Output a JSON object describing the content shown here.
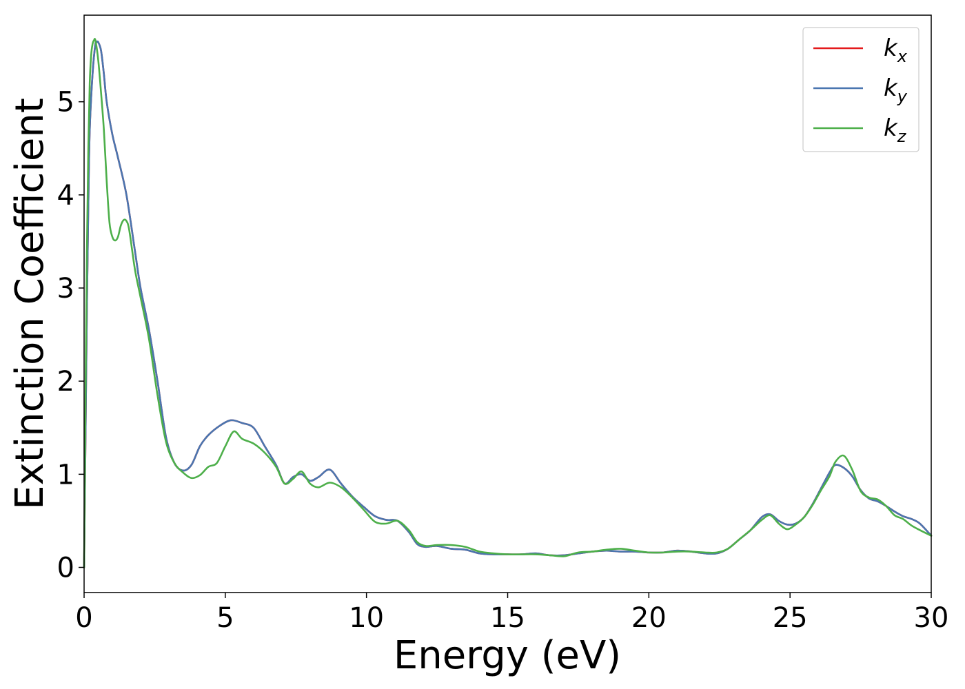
{
  "chart_data": {
    "type": "line",
    "xlabel": "Energy (eV)",
    "ylabel": "Extinction Coefficient",
    "xlim": [
      0,
      30
    ],
    "ylim": [
      -0.27,
      5.93
    ],
    "xticks": [
      0,
      5,
      10,
      15,
      20,
      25,
      30
    ],
    "yticks": [
      0,
      1,
      2,
      3,
      4,
      5
    ],
    "grid": false,
    "legend_position": "top-right",
    "series": [
      {
        "name": "k_x",
        "label_base": "k",
        "label_sub": "x",
        "color": "#e41a1c",
        "x": [
          0,
          0.05,
          0.1,
          0.15,
          0.2,
          0.3,
          0.4,
          0.45,
          0.5,
          0.6,
          0.7,
          0.8,
          1.0,
          1.2,
          1.5,
          1.8,
          2.0,
          2.3,
          2.6,
          2.9,
          3.2,
          3.5,
          3.8,
          4.1,
          4.4,
          4.8,
          5.2,
          5.6,
          6.0,
          6.4,
          6.8,
          7.1,
          7.4,
          7.7,
          8.0,
          8.3,
          8.7,
          9.1,
          9.5,
          9.9,
          10.3,
          10.7,
          11.1,
          11.5,
          11.8,
          12.1,
          12.5,
          13.0,
          13.5,
          14.0,
          14.5,
          15.0,
          15.5,
          16.0,
          16.5,
          17.0,
          17.5,
          18.0,
          18.5,
          19.0,
          19.5,
          20.0,
          20.5,
          21.0,
          21.5,
          22.0,
          22.4,
          22.8,
          23.2,
          23.6,
          24.0,
          24.3,
          24.6,
          24.9,
          25.2,
          25.5,
          25.8,
          26.1,
          26.4,
          26.6,
          26.9,
          27.2,
          27.5,
          27.8,
          28.1,
          28.4,
          28.7,
          29.0,
          29.3,
          29.6,
          30.0
        ],
        "y": [
          0,
          1.4,
          2.8,
          3.9,
          4.7,
          5.3,
          5.62,
          5.64,
          5.64,
          5.55,
          5.3,
          5.0,
          4.65,
          4.4,
          4.0,
          3.4,
          3.0,
          2.55,
          2.0,
          1.4,
          1.12,
          1.04,
          1.1,
          1.3,
          1.42,
          1.52,
          1.58,
          1.55,
          1.5,
          1.3,
          1.1,
          0.9,
          0.97,
          1.0,
          0.93,
          0.97,
          1.05,
          0.9,
          0.76,
          0.65,
          0.55,
          0.51,
          0.5,
          0.38,
          0.25,
          0.22,
          0.23,
          0.2,
          0.19,
          0.15,
          0.14,
          0.14,
          0.14,
          0.15,
          0.13,
          0.13,
          0.15,
          0.17,
          0.18,
          0.17,
          0.17,
          0.16,
          0.16,
          0.18,
          0.17,
          0.15,
          0.15,
          0.2,
          0.3,
          0.4,
          0.54,
          0.57,
          0.5,
          0.46,
          0.47,
          0.54,
          0.68,
          0.85,
          1.02,
          1.1,
          1.07,
          0.98,
          0.83,
          0.74,
          0.71,
          0.66,
          0.6,
          0.55,
          0.52,
          0.47,
          0.34
        ]
      },
      {
        "name": "k_y",
        "label_base": "k",
        "label_sub": "y",
        "color": "#4a76b0",
        "x": [
          0,
          0.05,
          0.1,
          0.15,
          0.2,
          0.3,
          0.4,
          0.45,
          0.5,
          0.6,
          0.7,
          0.8,
          1.0,
          1.2,
          1.5,
          1.8,
          2.0,
          2.3,
          2.6,
          2.9,
          3.2,
          3.5,
          3.8,
          4.1,
          4.4,
          4.8,
          5.2,
          5.6,
          6.0,
          6.4,
          6.8,
          7.1,
          7.4,
          7.7,
          8.0,
          8.3,
          8.7,
          9.1,
          9.5,
          9.9,
          10.3,
          10.7,
          11.1,
          11.5,
          11.8,
          12.1,
          12.5,
          13.0,
          13.5,
          14.0,
          14.5,
          15.0,
          15.5,
          16.0,
          16.5,
          17.0,
          17.5,
          18.0,
          18.5,
          19.0,
          19.5,
          20.0,
          20.5,
          21.0,
          21.5,
          22.0,
          22.4,
          22.8,
          23.2,
          23.6,
          24.0,
          24.3,
          24.6,
          24.9,
          25.2,
          25.5,
          25.8,
          26.1,
          26.4,
          26.6,
          26.9,
          27.2,
          27.5,
          27.8,
          28.1,
          28.4,
          28.7,
          29.0,
          29.3,
          29.6,
          30.0
        ],
        "y": [
          0,
          1.4,
          2.8,
          3.9,
          4.7,
          5.3,
          5.62,
          5.64,
          5.64,
          5.55,
          5.3,
          5.0,
          4.65,
          4.4,
          4.0,
          3.4,
          3.0,
          2.55,
          2.0,
          1.4,
          1.12,
          1.04,
          1.1,
          1.3,
          1.42,
          1.52,
          1.58,
          1.55,
          1.5,
          1.3,
          1.1,
          0.9,
          0.97,
          1.0,
          0.93,
          0.97,
          1.05,
          0.9,
          0.76,
          0.65,
          0.55,
          0.51,
          0.5,
          0.38,
          0.25,
          0.22,
          0.23,
          0.2,
          0.19,
          0.15,
          0.14,
          0.14,
          0.14,
          0.15,
          0.13,
          0.13,
          0.15,
          0.17,
          0.18,
          0.17,
          0.17,
          0.16,
          0.16,
          0.18,
          0.17,
          0.15,
          0.15,
          0.2,
          0.3,
          0.4,
          0.54,
          0.57,
          0.5,
          0.46,
          0.47,
          0.54,
          0.68,
          0.85,
          1.02,
          1.1,
          1.07,
          0.98,
          0.83,
          0.74,
          0.71,
          0.66,
          0.6,
          0.55,
          0.52,
          0.47,
          0.34
        ]
      },
      {
        "name": "k_z",
        "label_base": "k",
        "label_sub": "z",
        "color": "#4daf4a",
        "x": [
          0,
          0.05,
          0.1,
          0.15,
          0.2,
          0.25,
          0.3,
          0.35,
          0.4,
          0.5,
          0.6,
          0.7,
          0.8,
          0.9,
          1.0,
          1.1,
          1.2,
          1.3,
          1.4,
          1.5,
          1.6,
          1.8,
          2.0,
          2.3,
          2.6,
          2.9,
          3.2,
          3.5,
          3.8,
          4.1,
          4.4,
          4.7,
          5.0,
          5.3,
          5.6,
          6.0,
          6.4,
          6.8,
          7.1,
          7.4,
          7.7,
          8.0,
          8.3,
          8.7,
          9.1,
          9.5,
          9.9,
          10.3,
          10.7,
          11.1,
          11.5,
          11.8,
          12.1,
          12.5,
          13.0,
          13.5,
          14.0,
          14.5,
          15.0,
          15.5,
          16.0,
          16.5,
          17.0,
          17.5,
          18.0,
          18.5,
          19.0,
          19.5,
          20.0,
          20.5,
          21.0,
          21.5,
          22.0,
          22.4,
          22.8,
          23.2,
          23.6,
          24.0,
          24.3,
          24.6,
          24.9,
          25.2,
          25.5,
          25.8,
          26.1,
          26.4,
          26.6,
          26.9,
          27.2,
          27.5,
          27.8,
          28.1,
          28.4,
          28.7,
          29.0,
          29.3,
          29.6,
          30.0
        ],
        "y": [
          0,
          1.8,
          3.4,
          4.5,
          5.2,
          5.5,
          5.62,
          5.66,
          5.66,
          5.45,
          5.1,
          4.7,
          4.15,
          3.7,
          3.55,
          3.51,
          3.55,
          3.67,
          3.73,
          3.72,
          3.62,
          3.2,
          2.9,
          2.45,
          1.85,
          1.35,
          1.12,
          1.02,
          0.96,
          0.99,
          1.08,
          1.12,
          1.3,
          1.46,
          1.38,
          1.33,
          1.23,
          1.08,
          0.9,
          0.95,
          1.03,
          0.9,
          0.86,
          0.91,
          0.86,
          0.75,
          0.62,
          0.49,
          0.47,
          0.5,
          0.4,
          0.27,
          0.23,
          0.24,
          0.24,
          0.22,
          0.17,
          0.15,
          0.14,
          0.14,
          0.14,
          0.13,
          0.12,
          0.16,
          0.17,
          0.19,
          0.2,
          0.18,
          0.16,
          0.16,
          0.17,
          0.17,
          0.16,
          0.16,
          0.2,
          0.3,
          0.4,
          0.51,
          0.56,
          0.47,
          0.41,
          0.46,
          0.54,
          0.67,
          0.83,
          0.98,
          1.13,
          1.2,
          1.05,
          0.82,
          0.75,
          0.73,
          0.66,
          0.56,
          0.52,
          0.45,
          0.4,
          0.34
        ]
      }
    ]
  }
}
